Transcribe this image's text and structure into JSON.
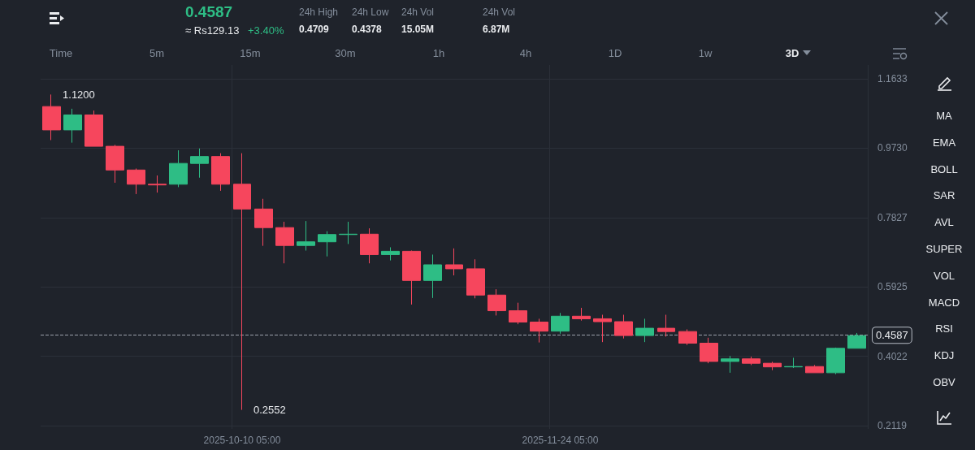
{
  "chart_data": {
    "type": "candlestick",
    "categories": [
      null,
      null,
      null,
      null,
      null,
      null,
      null,
      null,
      null,
      "2025-10-10 05:00",
      null,
      null,
      null,
      null,
      null,
      null,
      null,
      null,
      null,
      null,
      null,
      null,
      null,
      null,
      "2025-11-24 05:00",
      null,
      null,
      null,
      null,
      null,
      null,
      null,
      null,
      null,
      null,
      null,
      null,
      null,
      null
    ],
    "ohlc": [
      [
        1.087,
        1.12,
        0.995,
        1.023
      ],
      [
        1.023,
        1.081,
        0.988,
        1.064
      ],
      [
        1.064,
        1.076,
        0.978,
        0.978
      ],
      [
        0.978,
        0.982,
        0.878,
        0.913
      ],
      [
        0.913,
        0.917,
        0.847,
        0.874
      ],
      [
        0.874,
        0.898,
        0.851,
        0.872
      ],
      [
        0.874,
        0.967,
        0.866,
        0.931
      ],
      [
        0.931,
        0.972,
        0.892,
        0.95
      ],
      [
        0.95,
        0.959,
        0.856,
        0.874
      ],
      [
        0.874,
        0.959,
        0.2552,
        0.806
      ],
      [
        0.806,
        0.834,
        0.705,
        0.755
      ],
      [
        0.755,
        0.771,
        0.657,
        0.706
      ],
      [
        0.706,
        0.773,
        0.692,
        0.716
      ],
      [
        0.716,
        0.745,
        0.676,
        0.736
      ],
      [
        0.736,
        0.771,
        0.71,
        0.737
      ],
      [
        0.737,
        0.753,
        0.657,
        0.681
      ],
      [
        0.681,
        0.701,
        0.665,
        0.69
      ],
      [
        0.69,
        0.692,
        0.544,
        0.61
      ],
      [
        0.61,
        0.681,
        0.562,
        0.653
      ],
      [
        0.653,
        0.698,
        0.624,
        0.642
      ],
      [
        0.642,
        0.668,
        0.561,
        0.57
      ],
      [
        0.57,
        0.586,
        0.514,
        0.527
      ],
      [
        0.527,
        0.549,
        0.49,
        0.496
      ],
      [
        0.496,
        0.505,
        0.44,
        0.471
      ],
      [
        0.471,
        0.521,
        0.464,
        0.512
      ],
      [
        0.512,
        0.535,
        0.5,
        0.505
      ],
      [
        0.505,
        0.516,
        0.441,
        0.497
      ],
      [
        0.497,
        0.516,
        0.451,
        0.459
      ],
      [
        0.459,
        0.505,
        0.441,
        0.479
      ],
      [
        0.479,
        0.516,
        0.456,
        0.47
      ],
      [
        0.47,
        0.476,
        0.433,
        0.438
      ],
      [
        0.438,
        0.453,
        0.383,
        0.388
      ],
      [
        0.388,
        0.403,
        0.357,
        0.395
      ],
      [
        0.395,
        0.401,
        0.378,
        0.383
      ],
      [
        0.383,
        0.387,
        0.364,
        0.373
      ],
      [
        0.373,
        0.398,
        0.37,
        0.374
      ],
      [
        0.374,
        0.378,
        0.357,
        0.357
      ],
      [
        0.357,
        0.426,
        0.353,
        0.424
      ],
      [
        0.424,
        0.466,
        0.424,
        0.4587
      ]
    ],
    "colors": [
      "#f6465d",
      "#2ebd85",
      "#f6465d",
      "#f6465d",
      "#f6465d",
      "#f6465d",
      "#2ebd85",
      "#2ebd85",
      "#f6465d",
      "#f6465d",
      "#f6465d",
      "#f6465d",
      "#2ebd85",
      "#2ebd85",
      "#2ebd85",
      "#f6465d",
      "#2ebd85",
      "#f6465d",
      "#2ebd85",
      "#f6465d",
      "#f6465d",
      "#f6465d",
      "#f6465d",
      "#f6465d",
      "#2ebd85",
      "#f6465d",
      "#f6465d",
      "#f6465d",
      "#2ebd85",
      "#f6465d",
      "#f6465d",
      "#f6465d",
      "#2ebd85",
      "#f6465d",
      "#f6465d",
      "#2ebd85",
      "#f6465d",
      "#2ebd85",
      "#2ebd85"
    ],
    "ylim": [
      0.203,
      1.201
    ],
    "yticks": [
      0.2119,
      0.4022,
      0.5925,
      0.7827,
      {
        "value": 0.973,
        "label": "0.9730"
      },
      1.1633
    ],
    "grid": true,
    "ref_lines": [
      {
        "axis": "y",
        "value": 0.4587,
        "label": "0.4587",
        "line_style": "dashed",
        "color": "#9aa0aa"
      }
    ],
    "annotations": [
      "0.4587",
      "≈ Rs129.13",
      "+3.40%",
      "24h High",
      "0.4709",
      "24h Low",
      "0.4378",
      "24h Vol",
      "15.05M",
      "24h Vol",
      "6.87M",
      "Time",
      "5m",
      "15m",
      "30m",
      "1h",
      "4h",
      "1D",
      "1w",
      "3D",
      "MA",
      "EMA",
      "BOLL",
      "SAR",
      "AVL",
      "SUPER",
      "VOL",
      "MACD",
      "RSI",
      "KDJ",
      "OBV",
      "1.1200",
      "0.2552"
    ]
  }
}
